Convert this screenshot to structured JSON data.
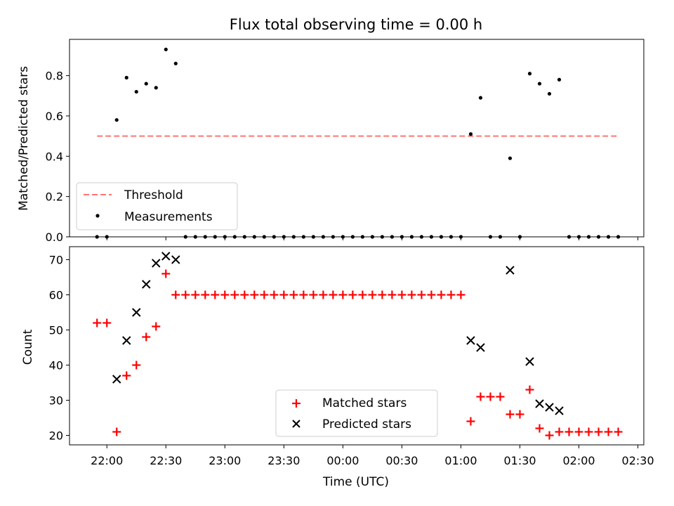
{
  "figure_title": "Flux total observing time = 0.00 h",
  "colors": {
    "threshold": "#ff7575",
    "measurements": "#000000",
    "matched": "#ff0000",
    "predicted": "#000000"
  },
  "chart_data": [
    {
      "type": "scatter",
      "ylabel": "Matched/Predicted stars",
      "ylim": [
        0,
        0.98
      ],
      "yticks": [
        "0.0",
        "0.2",
        "0.4",
        "0.6",
        "0.8"
      ],
      "xlim": [
        -19,
        273
      ],
      "legend_position": "lower-left",
      "threshold": {
        "label": "Threshold",
        "value": 0.5,
        "x_start": "21:55",
        "x_end": "02:20",
        "style": "dashed"
      },
      "series": [
        {
          "name": "Measurements",
          "marker": "dot",
          "points": [
            [
              "21:55",
              0
            ],
            [
              "22:00",
              0
            ],
            [
              "22:05",
              0.58
            ],
            [
              "22:10",
              0.79
            ],
            [
              "22:15",
              0.72
            ],
            [
              "22:20",
              0.76
            ],
            [
              "22:25",
              0.74
            ],
            [
              "22:30",
              0.93
            ],
            [
              "22:35",
              0.86
            ],
            [
              "22:40",
              0
            ],
            [
              "22:45",
              0
            ],
            [
              "22:50",
              0
            ],
            [
              "22:55",
              0
            ],
            [
              "23:00",
              0
            ],
            [
              "23:05",
              0
            ],
            [
              "23:10",
              0
            ],
            [
              "23:15",
              0
            ],
            [
              "23:20",
              0
            ],
            [
              "23:25",
              0
            ],
            [
              "23:30",
              0
            ],
            [
              "23:35",
              0
            ],
            [
              "23:40",
              0
            ],
            [
              "23:45",
              0
            ],
            [
              "23:50",
              0
            ],
            [
              "23:55",
              0
            ],
            [
              "00:00",
              0
            ],
            [
              "00:05",
              0
            ],
            [
              "00:10",
              0
            ],
            [
              "00:15",
              0
            ],
            [
              "00:20",
              0
            ],
            [
              "00:25",
              0
            ],
            [
              "00:30",
              0
            ],
            [
              "00:35",
              0
            ],
            [
              "00:40",
              0
            ],
            [
              "00:45",
              0
            ],
            [
              "00:50",
              0
            ],
            [
              "00:55",
              0
            ],
            [
              "01:00",
              0
            ],
            [
              "01:05",
              0.51
            ],
            [
              "01:10",
              0.69
            ],
            [
              "01:15",
              0
            ],
            [
              "01:20",
              0
            ],
            [
              "01:25",
              0.39
            ],
            [
              "01:30",
              0
            ],
            [
              "01:35",
              0.81
            ],
            [
              "01:40",
              0.76
            ],
            [
              "01:45",
              0.71
            ],
            [
              "01:50",
              0.78
            ],
            [
              "01:55",
              0
            ],
            [
              "02:00",
              0
            ],
            [
              "02:05",
              0
            ],
            [
              "02:10",
              0
            ],
            [
              "02:15",
              0
            ],
            [
              "02:20",
              0
            ]
          ]
        }
      ]
    },
    {
      "type": "scatter",
      "xlabel": "Time (UTC)",
      "ylabel": "Count",
      "ylim": [
        17.3,
        73.7
      ],
      "yticks": [
        "20",
        "30",
        "40",
        "50",
        "60",
        "70"
      ],
      "xlim": [
        -19,
        273
      ],
      "xticks": [
        "22:00",
        "22:30",
        "23:00",
        "23:30",
        "00:00",
        "00:30",
        "01:00",
        "01:30",
        "02:00",
        "02:30"
      ],
      "legend_position": "lower-center",
      "series": [
        {
          "name": "Matched stars",
          "marker": "plus",
          "points": [
            [
              "21:55",
              52
            ],
            [
              "22:00",
              52
            ],
            [
              "22:05",
              21
            ],
            [
              "22:10",
              37
            ],
            [
              "22:15",
              40
            ],
            [
              "22:20",
              48
            ],
            [
              "22:25",
              51
            ],
            [
              "22:30",
              66
            ],
            [
              "22:35",
              60
            ],
            [
              "22:40",
              60
            ],
            [
              "22:45",
              60
            ],
            [
              "22:50",
              60
            ],
            [
              "22:55",
              60
            ],
            [
              "23:00",
              60
            ],
            [
              "23:05",
              60
            ],
            [
              "23:10",
              60
            ],
            [
              "23:15",
              60
            ],
            [
              "23:20",
              60
            ],
            [
              "23:25",
              60
            ],
            [
              "23:30",
              60
            ],
            [
              "23:35",
              60
            ],
            [
              "23:40",
              60
            ],
            [
              "23:45",
              60
            ],
            [
              "23:50",
              60
            ],
            [
              "23:55",
              60
            ],
            [
              "00:00",
              60
            ],
            [
              "00:05",
              60
            ],
            [
              "00:10",
              60
            ],
            [
              "00:15",
              60
            ],
            [
              "00:20",
              60
            ],
            [
              "00:25",
              60
            ],
            [
              "00:30",
              60
            ],
            [
              "00:35",
              60
            ],
            [
              "00:40",
              60
            ],
            [
              "00:45",
              60
            ],
            [
              "00:50",
              60
            ],
            [
              "00:55",
              60
            ],
            [
              "01:00",
              60
            ],
            [
              "01:05",
              24
            ],
            [
              "01:10",
              31
            ],
            [
              "01:15",
              31
            ],
            [
              "01:20",
              31
            ],
            [
              "01:25",
              26
            ],
            [
              "01:30",
              26
            ],
            [
              "01:35",
              33
            ],
            [
              "01:40",
              22
            ],
            [
              "01:45",
              20
            ],
            [
              "01:50",
              21
            ],
            [
              "01:55",
              21
            ],
            [
              "02:00",
              21
            ],
            [
              "02:05",
              21
            ],
            [
              "02:10",
              21
            ],
            [
              "02:15",
              21
            ],
            [
              "02:20",
              21
            ]
          ]
        },
        {
          "name": "Predicted stars",
          "marker": "x",
          "points": [
            [
              "22:05",
              36
            ],
            [
              "22:10",
              47
            ],
            [
              "22:15",
              55
            ],
            [
              "22:20",
              63
            ],
            [
              "22:25",
              69
            ],
            [
              "22:30",
              71
            ],
            [
              "22:35",
              70
            ],
            [
              "01:05",
              47
            ],
            [
              "01:10",
              45
            ],
            [
              "01:25",
              67
            ],
            [
              "01:35",
              41
            ],
            [
              "01:40",
              29
            ],
            [
              "01:45",
              28
            ],
            [
              "01:50",
              27
            ]
          ]
        }
      ]
    }
  ]
}
